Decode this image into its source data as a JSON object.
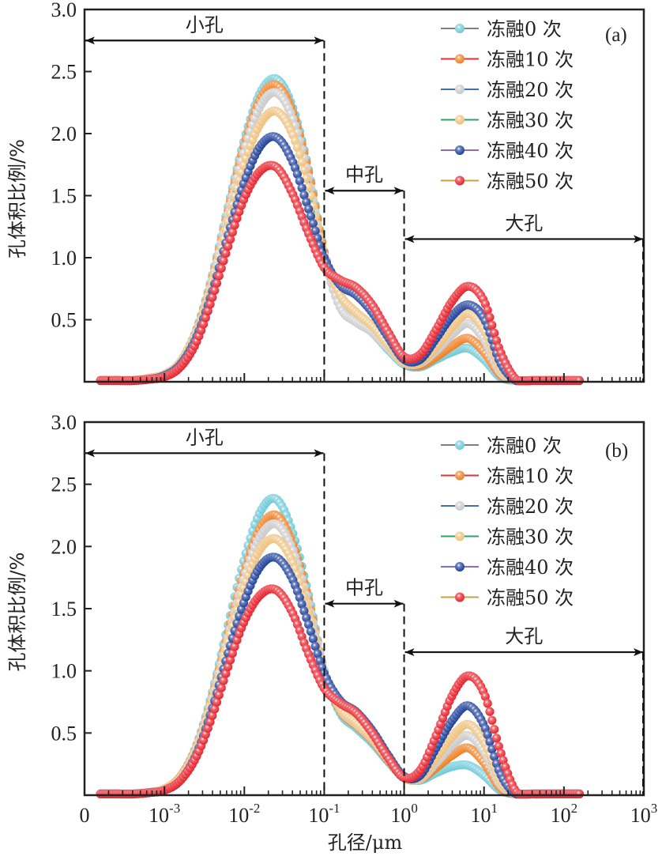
{
  "chart_data": {
    "type": "line",
    "x_scale": "log10",
    "x_label": "孔径/μm",
    "y_label": "孔体积比例/%",
    "x_ticks": [
      {
        "value": -4,
        "base": "0",
        "exp": ""
      },
      {
        "value": -3,
        "base": "10",
        "exp": "-3"
      },
      {
        "value": -2,
        "base": "10",
        "exp": "-2"
      },
      {
        "value": -1,
        "base": "10",
        "exp": "-1"
      },
      {
        "value": 0,
        "base": "10",
        "exp": "0"
      },
      {
        "value": 1,
        "base": "10",
        "exp": "1"
      },
      {
        "value": 2,
        "base": "10",
        "exp": "2"
      },
      {
        "value": 3,
        "base": "10",
        "exp": "3"
      }
    ],
    "xlim_log10": [
      -4,
      3
    ],
    "y_ticks": [
      "0.5",
      "1.0",
      "1.5",
      "2.0",
      "2.5",
      "3.0"
    ],
    "ylim": [
      0,
      3.0
    ],
    "grid": false,
    "legend_position": "top-right",
    "regions": [
      {
        "label": "小孔",
        "from_log10": -4,
        "to_log10": -1,
        "arrow_y": 2.75
      },
      {
        "label": "中孔",
        "from_log10": -1,
        "to_log10": 0,
        "arrow_y": 1.54
      },
      {
        "label": "大孔",
        "from_log10": 0,
        "to_log10": 3,
        "arrow_y": 1.15
      }
    ],
    "series_style": [
      {
        "name": "冻融0 次",
        "line_color": "#808080",
        "marker_color": "#6cc9d8"
      },
      {
        "name": "冻融10 次",
        "line_color": "#e0303a",
        "marker_color": "#ef7e22"
      },
      {
        "name": "冻融20 次",
        "line_color": "#3f6fb8",
        "marker_color": "#c9c9c9"
      },
      {
        "name": "冻融30 次",
        "line_color": "#2fa36b",
        "marker_color": "#eec07a"
      },
      {
        "name": "冻融40 次",
        "line_color": "#8c6bb8",
        "marker_color": "#1d3f9a"
      },
      {
        "name": "冻融50 次",
        "line_color": "#c8a040",
        "marker_color": "#e8202a"
      }
    ],
    "x_log10": [
      -3.8,
      -3.6,
      -3.4,
      -3.2,
      -3.0,
      -2.8,
      -2.6,
      -2.4,
      -2.2,
      -2.0,
      -1.8,
      -1.6,
      -1.4,
      -1.2,
      -1.0,
      -0.8,
      -0.6,
      -0.4,
      -0.2,
      0.0,
      0.2,
      0.4,
      0.6,
      0.8,
      1.0,
      1.2,
      1.4,
      1.6,
      1.8,
      2.0,
      2.2
    ],
    "panels": [
      {
        "tag": "(a)",
        "series": [
          {
            "name": "冻融0 次",
            "values": [
              0.01,
              0.01,
              0.01,
              0.02,
              0.05,
              0.16,
              0.42,
              0.86,
              1.42,
              1.95,
              2.33,
              2.44,
              2.22,
              1.72,
              1.05,
              0.62,
              0.5,
              0.4,
              0.26,
              0.14,
              0.12,
              0.18,
              0.24,
              0.27,
              0.18,
              0.04,
              0.01,
              0.01,
              0.01,
              0.01,
              0.01
            ]
          },
          {
            "name": "冻融10 次",
            "values": [
              0.01,
              0.01,
              0.01,
              0.02,
              0.05,
              0.16,
              0.41,
              0.84,
              1.39,
              1.91,
              2.28,
              2.39,
              2.18,
              1.7,
              1.04,
              0.63,
              0.51,
              0.41,
              0.27,
              0.15,
              0.13,
              0.2,
              0.29,
              0.35,
              0.24,
              0.06,
              0.01,
              0.01,
              0.01,
              0.01,
              0.01
            ]
          },
          {
            "name": "冻融20 次",
            "values": [
              0.01,
              0.01,
              0.01,
              0.02,
              0.05,
              0.15,
              0.4,
              0.82,
              1.36,
              1.86,
              2.22,
              2.33,
              2.13,
              1.66,
              1.0,
              0.6,
              0.48,
              0.4,
              0.27,
              0.15,
              0.15,
              0.25,
              0.38,
              0.47,
              0.34,
              0.08,
              0.01,
              0.01,
              0.01,
              0.01,
              0.01
            ]
          },
          {
            "name": "冻融30 次",
            "values": [
              0.01,
              0.01,
              0.01,
              0.03,
              0.06,
              0.16,
              0.4,
              0.8,
              1.3,
              1.76,
              2.08,
              2.18,
              2.0,
              1.58,
              1.02,
              0.7,
              0.56,
              0.45,
              0.3,
              0.16,
              0.16,
              0.28,
              0.44,
              0.55,
              0.42,
              0.11,
              0.01,
              0.01,
              0.01,
              0.01,
              0.01
            ]
          },
          {
            "name": "冻融40 次",
            "values": [
              0.01,
              0.01,
              0.01,
              0.02,
              0.05,
              0.14,
              0.36,
              0.73,
              1.19,
              1.61,
              1.9,
              1.97,
              1.78,
              1.4,
              1.0,
              0.78,
              0.7,
              0.56,
              0.36,
              0.18,
              0.18,
              0.35,
              0.53,
              0.62,
              0.51,
              0.16,
              0.01,
              0.01,
              0.01,
              0.01,
              0.01
            ]
          },
          {
            "name": "冻融50 次",
            "values": [
              0.01,
              0.01,
              0.01,
              0.02,
              0.04,
              0.12,
              0.32,
              0.68,
              1.1,
              1.48,
              1.7,
              1.73,
              1.52,
              1.2,
              0.92,
              0.82,
              0.76,
              0.62,
              0.4,
              0.2,
              0.22,
              0.42,
              0.65,
              0.77,
              0.65,
              0.25,
              0.02,
              0.01,
              0.01,
              0.01,
              0.01
            ]
          }
        ]
      },
      {
        "tag": "(b)",
        "series": [
          {
            "name": "冻融0 次",
            "values": [
              0.01,
              0.01,
              0.01,
              0.02,
              0.05,
              0.15,
              0.4,
              0.83,
              1.38,
              1.9,
              2.28,
              2.38,
              2.12,
              1.62,
              1.0,
              0.66,
              0.54,
              0.42,
              0.27,
              0.14,
              0.12,
              0.18,
              0.23,
              0.24,
              0.16,
              0.04,
              0.01,
              0.01,
              0.01,
              0.01,
              0.01
            ]
          },
          {
            "name": "冻融10 次",
            "values": [
              0.01,
              0.01,
              0.01,
              0.02,
              0.05,
              0.15,
              0.39,
              0.8,
              1.32,
              1.8,
              2.15,
              2.25,
              2.03,
              1.58,
              1.0,
              0.68,
              0.56,
              0.44,
              0.28,
              0.14,
              0.13,
              0.22,
              0.32,
              0.38,
              0.26,
              0.06,
              0.01,
              0.01,
              0.01,
              0.01,
              0.01
            ]
          },
          {
            "name": "冻融20 次",
            "values": [
              0.01,
              0.01,
              0.01,
              0.02,
              0.05,
              0.14,
              0.38,
              0.78,
              1.28,
              1.75,
              2.08,
              2.18,
              1.98,
              1.55,
              1.0,
              0.69,
              0.57,
              0.45,
              0.29,
              0.14,
              0.13,
              0.26,
              0.4,
              0.48,
              0.35,
              0.09,
              0.01,
              0.01,
              0.01,
              0.01,
              0.01
            ]
          },
          {
            "name": "冻融30 次",
            "values": [
              0.01,
              0.01,
              0.01,
              0.02,
              0.05,
              0.14,
              0.37,
              0.76,
              1.24,
              1.68,
              1.98,
              2.06,
              1.88,
              1.48,
              0.98,
              0.7,
              0.58,
              0.46,
              0.3,
              0.14,
              0.14,
              0.3,
              0.47,
              0.57,
              0.43,
              0.12,
              0.01,
              0.01,
              0.01,
              0.01,
              0.01
            ]
          },
          {
            "name": "冻融40 次",
            "values": [
              0.01,
              0.01,
              0.01,
              0.02,
              0.04,
              0.12,
              0.33,
              0.7,
              1.15,
              1.56,
              1.84,
              1.91,
              1.74,
              1.38,
              0.98,
              0.76,
              0.67,
              0.52,
              0.32,
              0.15,
              0.16,
              0.38,
              0.6,
              0.72,
              0.56,
              0.18,
              0.01,
              0.01,
              0.01,
              0.01,
              0.01
            ]
          },
          {
            "name": "冻融50 次",
            "values": [
              0.01,
              0.01,
              0.01,
              0.02,
              0.04,
              0.12,
              0.31,
              0.64,
              1.04,
              1.4,
              1.61,
              1.65,
              1.47,
              1.14,
              0.86,
              0.74,
              0.66,
              0.5,
              0.3,
              0.14,
              0.2,
              0.48,
              0.8,
              0.96,
              0.82,
              0.36,
              0.03,
              0.01,
              0.01,
              0.01,
              0.01
            ]
          }
        ]
      }
    ]
  }
}
